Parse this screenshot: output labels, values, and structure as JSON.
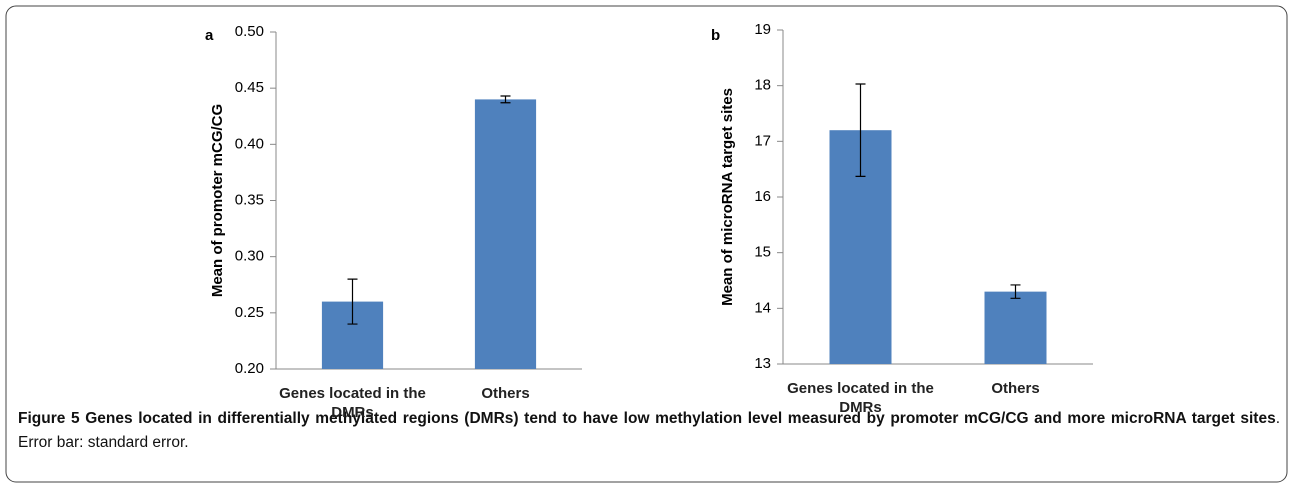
{
  "chart_data": [
    {
      "type": "bar",
      "panel": "a",
      "ylabel": "Mean of promoter mCG/CG",
      "categories": [
        "Genes located in the DMRs",
        "Others"
      ],
      "values": [
        0.26,
        0.44
      ],
      "errors": [
        0.02,
        0.003
      ],
      "color": "#4f81bd",
      "ylim": [
        0.2,
        0.5
      ],
      "yticks": [
        {
          "value": 0.2,
          "label": "0.20"
        },
        {
          "value": 0.25,
          "label": "0.25"
        },
        {
          "value": 0.3,
          "label": "0.30"
        },
        {
          "value": 0.35,
          "label": "0.35"
        },
        {
          "value": 0.4,
          "label": "0.40"
        },
        {
          "value": 0.45,
          "label": "0.45"
        },
        {
          "value": 0.5,
          "label": "0.50"
        }
      ],
      "grid": false
    },
    {
      "type": "bar",
      "panel": "b",
      "ylabel": "Mean of microRNA target sites",
      "categories": [
        "Genes located in the DMRs",
        "Others"
      ],
      "values": [
        17.2,
        14.3
      ],
      "errors": [
        0.83,
        0.12
      ],
      "color": "#4f81bd",
      "ylim": [
        13,
        19
      ],
      "yticks": [
        13,
        14,
        15,
        16,
        17,
        18,
        19
      ],
      "grid": false
    }
  ],
  "caption": {
    "label": "Figure 5",
    "title": "Genes located in differentially methylated regions (DMRs) tend to have low methylation level measured by promoter mCG/CG and more microRNA target sites",
    "text": ". Error bar: standard error."
  }
}
